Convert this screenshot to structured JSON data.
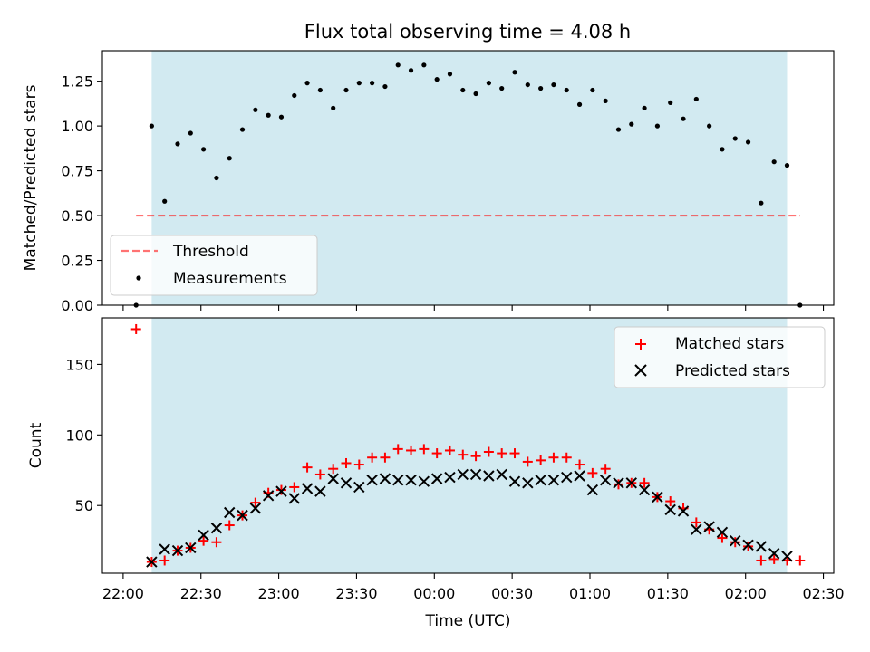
{
  "title": "Flux total observing time = 4.08 h",
  "colors": {
    "band": "#add8e6",
    "threshold": "#ff0000",
    "measurement": "#000000",
    "matched": "#ff0000",
    "predicted": "#000000"
  },
  "chart_data": [
    {
      "type": "scatter",
      "ylabel": "Matched/Predicted stars",
      "xlim": [
        "22:00",
        "02:30"
      ],
      "ylim": [
        0.0,
        1.42
      ],
      "yticks": [
        "0.00",
        "0.25",
        "0.50",
        "0.75",
        "1.00",
        "1.25"
      ],
      "observing_band": {
        "start": "22:11",
        "end": "02:16"
      },
      "threshold": {
        "name": "Threshold",
        "value": 0.5,
        "x_start": "22:05",
        "x_end": "02:21",
        "style": "dashed"
      },
      "legend": {
        "placement": "lower-left",
        "entries": [
          "Threshold",
          "Measurements"
        ]
      },
      "series": [
        {
          "name": "Measurements",
          "marker": "dot",
          "x": [
            "22:05",
            "22:11",
            "22:16",
            "22:21",
            "22:26",
            "22:31",
            "22:36",
            "22:41",
            "22:46",
            "22:51",
            "22:56",
            "23:01",
            "23:06",
            "23:11",
            "23:16",
            "23:21",
            "23:26",
            "23:31",
            "23:36",
            "23:41",
            "23:46",
            "23:51",
            "23:56",
            "00:01",
            "00:06",
            "00:11",
            "00:16",
            "00:21",
            "00:26",
            "00:31",
            "00:36",
            "00:41",
            "00:46",
            "00:51",
            "00:56",
            "01:01",
            "01:06",
            "01:11",
            "01:16",
            "01:21",
            "01:26",
            "01:31",
            "01:36",
            "01:41",
            "01:46",
            "01:51",
            "01:56",
            "02:01",
            "02:06",
            "02:11",
            "02:16",
            "02:21"
          ],
          "values": [
            0.0,
            1.0,
            0.58,
            0.9,
            0.96,
            0.87,
            0.71,
            0.82,
            0.98,
            1.09,
            1.06,
            1.05,
            1.17,
            1.24,
            1.2,
            1.1,
            1.2,
            1.24,
            1.24,
            1.22,
            1.34,
            1.31,
            1.34,
            1.26,
            1.29,
            1.2,
            1.18,
            1.24,
            1.21,
            1.3,
            1.23,
            1.21,
            1.23,
            1.2,
            1.12,
            1.2,
            1.14,
            0.98,
            1.01,
            1.1,
            1.0,
            1.13,
            1.04,
            1.15,
            1.0,
            0.87,
            0.93,
            0.91,
            0.57,
            0.8,
            0.78,
            0.0
          ]
        }
      ]
    },
    {
      "type": "scatter",
      "xlabel": "Time (UTC)",
      "ylabel": "Count",
      "xlim": [
        "22:00",
        "02:30"
      ],
      "ylim": [
        2,
        183
      ],
      "yticks": [
        "50",
        "100",
        "150"
      ],
      "xticks": [
        "22:00",
        "22:30",
        "23:00",
        "23:30",
        "00:00",
        "00:30",
        "01:00",
        "01:30",
        "02:00",
        "02:30"
      ],
      "observing_band": {
        "start": "22:11",
        "end": "02:16"
      },
      "legend": {
        "placement": "upper-right",
        "entries": [
          "Matched stars",
          "Predicted stars"
        ]
      },
      "series": [
        {
          "name": "Matched stars",
          "marker": "plus",
          "x": [
            "22:05",
            "22:11",
            "22:16",
            "22:21",
            "22:26",
            "22:31",
            "22:36",
            "22:41",
            "22:46",
            "22:51",
            "22:56",
            "23:01",
            "23:06",
            "23:11",
            "23:16",
            "23:21",
            "23:26",
            "23:31",
            "23:36",
            "23:41",
            "23:46",
            "23:51",
            "23:56",
            "00:01",
            "00:06",
            "00:11",
            "00:16",
            "00:21",
            "00:26",
            "00:31",
            "00:36",
            "00:41",
            "00:46",
            "00:51",
            "00:56",
            "01:01",
            "01:06",
            "01:11",
            "01:16",
            "01:21",
            "01:26",
            "01:31",
            "01:36",
            "01:41",
            "01:46",
            "01:51",
            "01:56",
            "02:01",
            "02:06",
            "02:11",
            "02:16",
            "02:21"
          ],
          "values": [
            175,
            10,
            11,
            18,
            20,
            25,
            24,
            36,
            43,
            52,
            59,
            61,
            63,
            77,
            72,
            76,
            80,
            79,
            84,
            84,
            90,
            89,
            90,
            87,
            89,
            86,
            85,
            88,
            87,
            87,
            81,
            82,
            84,
            84,
            79,
            73,
            76,
            65,
            66,
            66,
            56,
            53,
            48,
            38,
            33,
            27,
            24,
            21,
            11,
            12,
            11,
            11
          ]
        },
        {
          "name": "Predicted stars",
          "marker": "x",
          "x": [
            "22:11",
            "22:16",
            "22:21",
            "22:26",
            "22:31",
            "22:36",
            "22:41",
            "22:46",
            "22:51",
            "22:56",
            "23:01",
            "23:06",
            "23:11",
            "23:16",
            "23:21",
            "23:26",
            "23:31",
            "23:36",
            "23:41",
            "23:46",
            "23:51",
            "23:56",
            "00:01",
            "00:06",
            "00:11",
            "00:16",
            "00:21",
            "00:26",
            "00:31",
            "00:36",
            "00:41",
            "00:46",
            "00:51",
            "00:56",
            "01:01",
            "01:06",
            "01:11",
            "01:16",
            "01:21",
            "01:26",
            "01:31",
            "01:36",
            "01:41",
            "01:46",
            "01:51",
            "01:56",
            "02:01",
            "02:06",
            "02:11",
            "02:16"
          ],
          "values": [
            10,
            19,
            18,
            20,
            29,
            34,
            45,
            43,
            48,
            57,
            60,
            55,
            62,
            60,
            69,
            66,
            63,
            68,
            69,
            68,
            68,
            67,
            69,
            70,
            72,
            72,
            71,
            72,
            67,
            66,
            68,
            68,
            70,
            71,
            61,
            68,
            66,
            66,
            61,
            56,
            47,
            46,
            33,
            35,
            31,
            25,
            22,
            21,
            16,
            14
          ]
        }
      ]
    }
  ]
}
